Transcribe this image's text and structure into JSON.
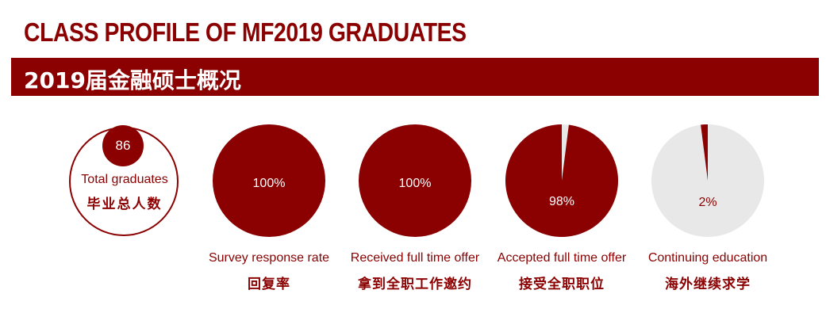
{
  "title": "CLASS PROFILE OF MF2019 GRADUATES",
  "subtitle": "2019届金融硕士概况",
  "colors": {
    "accent": "#8b0000",
    "muted": "#e8e8e8",
    "text_light": "#ffffff"
  },
  "total": {
    "value": "86",
    "label_en": "Total graduates",
    "label_cn": "毕业总人数"
  },
  "chart_data": {
    "type": "pie",
    "charts": [
      {
        "value": 100,
        "label": "100%",
        "caption_en": "Survey response rate",
        "caption_cn": "回复率"
      },
      {
        "value": 100,
        "label": "100%",
        "caption_en": "Received full time offer",
        "caption_cn": "拿到全职工作邀约"
      },
      {
        "value": 98,
        "label": "98%",
        "caption_en": "Accepted full time offer",
        "caption_cn": "接受全职职位"
      },
      {
        "value": 2,
        "label": "2%",
        "caption_en": "Continuing education",
        "caption_cn": "海外继续求学"
      }
    ]
  }
}
